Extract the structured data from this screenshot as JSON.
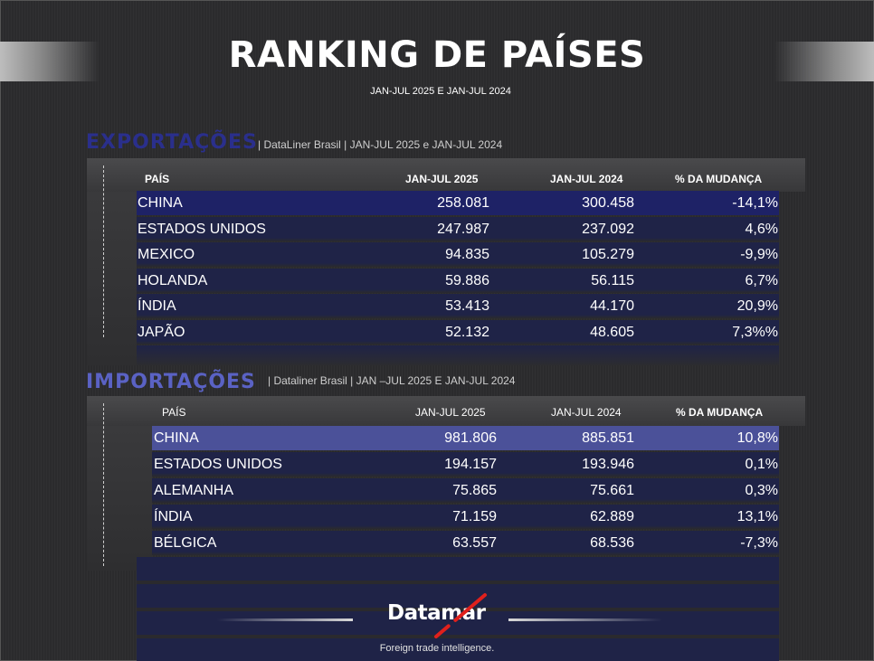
{
  "header": {
    "title": "RANKING DE PAÍSES",
    "subtitle": "JAN-JUL 2025 E JAN-JUL 2024"
  },
  "exports": {
    "heading": "EXPORTAÇÕES",
    "source": "|  DataLiner Brasil  | JAN-JUL 2025 e JAN-JUL 2024",
    "columns": [
      "PAÍS",
      "JAN-JUL 2025",
      "JAN-JUL 2024",
      "% DA MUDANÇA"
    ],
    "rows": [
      {
        "country": "CHINA",
        "y2025": "258.081",
        "y2024": "300.458",
        "change": "-14,1%"
      },
      {
        "country": "ESTADOS UNIDOS",
        "y2025": "247.987",
        "y2024": "237.092",
        "change": "4,6%"
      },
      {
        "country": "MEXICO",
        "y2025": "94.835",
        "y2024": "105.279",
        "change": "-9,9%"
      },
      {
        "country": "HOLANDA",
        "y2025": "59.886",
        "y2024": "56.115",
        "change": "6,7%"
      },
      {
        "country": "ÍNDIA",
        "y2025": "53.413",
        "y2024": "44.170",
        "change": "20,9%"
      },
      {
        "country": "JAPÃO",
        "y2025": "52.132",
        "y2024": "48.605",
        "change": "7,3%%"
      }
    ]
  },
  "imports": {
    "heading": "IMPORTAÇÕES",
    "source": "|  Dataliner Brasil | JAN –JUL  2025  E JAN-JUL 2024",
    "columns": [
      "PAÍS",
      "JAN-JUL 2025",
      "JAN-JUL 2024",
      "% DA MUDANÇA"
    ],
    "rows": [
      {
        "country": "CHINA",
        "y2025": "981.806",
        "y2024": "885.851",
        "change": "10,8%"
      },
      {
        "country": "ESTADOS UNIDOS",
        "y2025": "194.157",
        "y2024": "193.946",
        "change": "0,1%"
      },
      {
        "country": "ALEMANHA",
        "y2025": "75.865",
        "y2024": "75.661",
        "change": "0,3%"
      },
      {
        "country": "ÍNDIA",
        "y2025": "71.159",
        "y2024": "62.889",
        "change": "13,1%"
      },
      {
        "country": "BÉLGICA",
        "y2025": "63.557",
        "y2024": "68.536",
        "change": "-7,3%"
      }
    ]
  },
  "footer": {
    "logo": "Datamar",
    "tagline": "Foreign trade intelligence."
  },
  "colors": {
    "exports_heading": "#2a2f8c",
    "imports_heading": "#5a62c4",
    "row_highlight_exports": "#1e2266",
    "row_highlight_imports": "#4b5199",
    "row_band": "#1f2347",
    "logo_accent": "#e0201c"
  }
}
